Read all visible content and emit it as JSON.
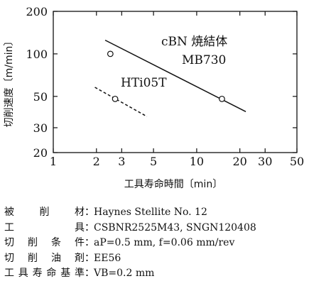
{
  "chart_data": {
    "type": "line",
    "title": "",
    "xlabel": "工具寿命時間〔min〕",
    "ylabel": "切削速度〔m/min〕",
    "xscale": "log",
    "yscale": "log",
    "xlim": [
      1,
      50
    ],
    "ylim": [
      20,
      200
    ],
    "grid": false,
    "x_ticks": [
      1,
      2,
      3,
      5,
      10,
      20,
      30,
      50
    ],
    "x_tick_labels": [
      "1",
      "2",
      "3",
      "5",
      "10",
      "20",
      "30",
      "50"
    ],
    "y_ticks": [
      20,
      30,
      50,
      100,
      200
    ],
    "y_tick_labels": [
      "20",
      "30",
      "50",
      "100",
      "200"
    ],
    "series": [
      {
        "name": "cBN 焼結体 MB730",
        "label_lines": [
          "cBN 焼結体",
          "MB730"
        ],
        "style": "solid",
        "color": "#111111",
        "line": [
          [
            2.3,
            125
          ],
          [
            22,
            39
          ]
        ],
        "markers": [
          [
            2.5,
            100
          ],
          [
            15,
            48
          ]
        ]
      },
      {
        "name": "HTi05T",
        "label_lines": [
          "HTi05T"
        ],
        "style": "dashed",
        "color": "#111111",
        "line": [
          [
            1.95,
            58
          ],
          [
            4.5,
            36
          ]
        ],
        "markers": [
          [
            2.7,
            48
          ]
        ]
      }
    ]
  },
  "conditions": [
    {
      "label": "被 削 材",
      "value": "Haynes Stellite No. 12"
    },
    {
      "label": "工 具",
      "value": "CSBNR2525M43, SNGN120408"
    },
    {
      "label": "切 削 条 件",
      "value": "aP=0.5 mm, f=0.06 mm/rev"
    },
    {
      "label": "切 削 油 剤",
      "value": "EE56"
    },
    {
      "label": "工具寿命基準",
      "value": "VB=0.2 mm"
    }
  ],
  "colon": "："
}
